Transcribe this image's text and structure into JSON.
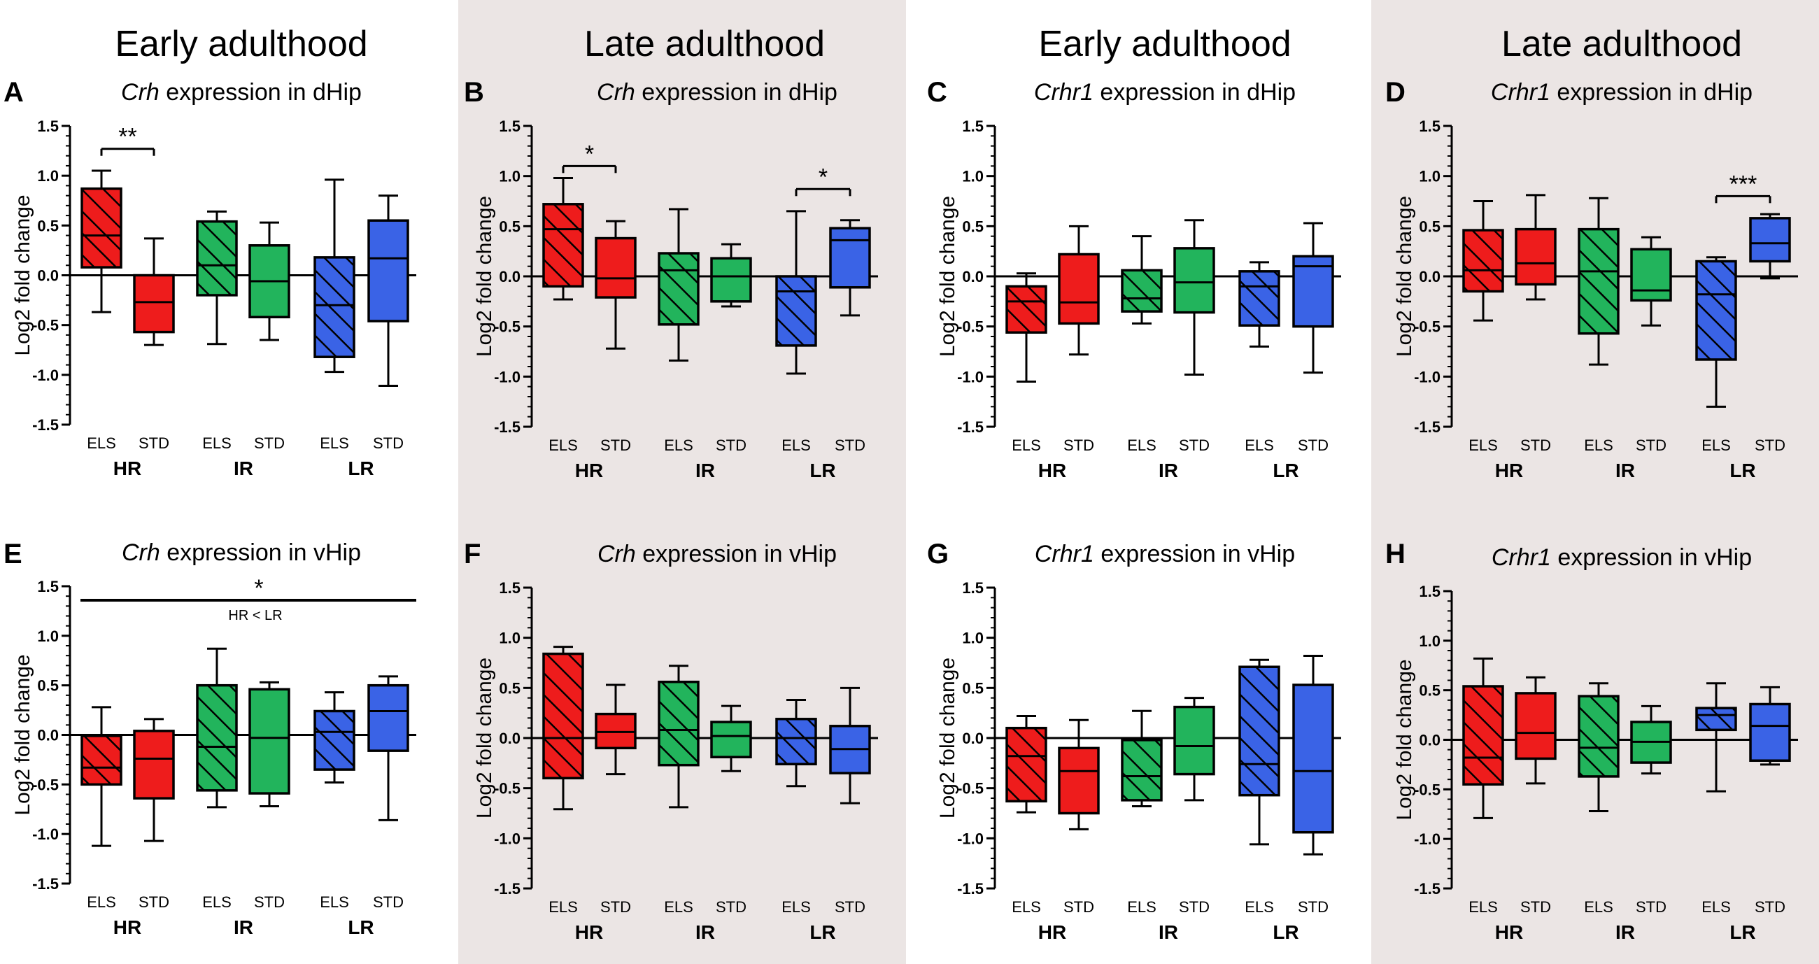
{
  "column_titles": [
    "Early adulthood",
    "Late adulthood",
    "Early adulthood",
    "Late adulthood"
  ],
  "colors": {
    "shade": "#ebe5e4",
    "HR": "#ee1c1c",
    "IR": "#22b45c",
    "LR": "#3a63e6",
    "ink": "#000000"
  },
  "chart_data": [
    {
      "type": "box",
      "panel": "A",
      "title_gene": "Crh",
      "title_rest": "expression in dHip",
      "ylabel": "Log2 fold change",
      "ylim": [
        -1.5,
        1.5
      ],
      "yticks": [
        "1.5",
        "1.0",
        "0.5",
        "0.0",
        "-0.5",
        "-1.0",
        "-1.5"
      ],
      "categories": [
        "ELS",
        "STD",
        "ELS",
        "STD",
        "ELS",
        "STD"
      ],
      "groups": [
        "HR",
        "IR",
        "LR"
      ],
      "boxes": [
        {
          "group": "HR",
          "cond": "ELS",
          "min": -0.37,
          "q1": 0.08,
          "median": 0.4,
          "q3": 0.87,
          "max": 1.05
        },
        {
          "group": "HR",
          "cond": "STD",
          "min": -0.7,
          "q1": -0.57,
          "median": -0.27,
          "q3": 0.0,
          "max": 0.37
        },
        {
          "group": "IR",
          "cond": "ELS",
          "min": -0.69,
          "q1": -0.2,
          "median": 0.1,
          "q3": 0.54,
          "max": 0.64
        },
        {
          "group": "IR",
          "cond": "STD",
          "min": -0.65,
          "q1": -0.42,
          "median": -0.06,
          "q3": 0.3,
          "max": 0.53
        },
        {
          "group": "LR",
          "cond": "ELS",
          "min": -0.97,
          "q1": -0.82,
          "median": -0.3,
          "q3": 0.18,
          "max": 0.96
        },
        {
          "group": "LR",
          "cond": "STD",
          "min": -1.11,
          "q1": -0.46,
          "median": 0.17,
          "q3": 0.55,
          "max": 0.8
        }
      ],
      "significance": [
        {
          "from": 0,
          "to": 1,
          "y": 1.27,
          "label": "**"
        }
      ]
    },
    {
      "type": "box",
      "panel": "B",
      "title_gene": "Crh",
      "title_rest": "expression in dHip",
      "ylabel": "Log2 fold change",
      "ylim": [
        -1.5,
        1.5
      ],
      "yticks": [
        "1.5",
        "1.0",
        "0.5",
        "0.0",
        "-0.5",
        "-1.0",
        "-1.5"
      ],
      "categories": [
        "ELS",
        "STD",
        "ELS",
        "STD",
        "ELS",
        "STD"
      ],
      "groups": [
        "HR",
        "IR",
        "LR"
      ],
      "boxes": [
        {
          "group": "HR",
          "cond": "ELS",
          "min": -0.23,
          "q1": -0.1,
          "median": 0.47,
          "q3": 0.72,
          "max": 0.98
        },
        {
          "group": "HR",
          "cond": "STD",
          "min": -0.72,
          "q1": -0.21,
          "median": -0.02,
          "q3": 0.38,
          "max": 0.55
        },
        {
          "group": "IR",
          "cond": "ELS",
          "min": -0.84,
          "q1": -0.48,
          "median": 0.06,
          "q3": 0.23,
          "max": 0.67
        },
        {
          "group": "IR",
          "cond": "STD",
          "min": -0.3,
          "q1": -0.25,
          "median": 0.0,
          "q3": 0.18,
          "max": 0.32
        },
        {
          "group": "LR",
          "cond": "ELS",
          "min": -0.97,
          "q1": -0.69,
          "median": -0.15,
          "q3": 0.0,
          "max": 0.65
        },
        {
          "group": "LR",
          "cond": "STD",
          "min": -0.39,
          "q1": -0.11,
          "median": 0.36,
          "q3": 0.48,
          "max": 0.56
        }
      ],
      "significance": [
        {
          "from": 0,
          "to": 1,
          "y": 1.1,
          "label": "*"
        },
        {
          "from": 4,
          "to": 5,
          "y": 0.87,
          "label": "*"
        }
      ]
    },
    {
      "type": "box",
      "panel": "C",
      "title_gene": "Crhr1",
      "title_rest": "expression in dHip",
      "ylabel": "Log2 fold change",
      "ylim": [
        -1.5,
        1.5
      ],
      "yticks": [
        "1.5",
        "1.0",
        "0.5",
        "0.0",
        "-0.5",
        "-1.0",
        "-1.5"
      ],
      "categories": [
        "ELS",
        "STD",
        "ELS",
        "STD",
        "ELS",
        "STD"
      ],
      "groups": [
        "HR",
        "IR",
        "LR"
      ],
      "boxes": [
        {
          "group": "HR",
          "cond": "ELS",
          "min": -1.05,
          "q1": -0.56,
          "median": -0.25,
          "q3": -0.1,
          "max": 0.03
        },
        {
          "group": "HR",
          "cond": "STD",
          "min": -0.78,
          "q1": -0.47,
          "median": -0.26,
          "q3": 0.22,
          "max": 0.5
        },
        {
          "group": "IR",
          "cond": "ELS",
          "min": -0.47,
          "q1": -0.35,
          "median": -0.22,
          "q3": 0.06,
          "max": 0.4
        },
        {
          "group": "IR",
          "cond": "STD",
          "min": -0.98,
          "q1": -0.36,
          "median": -0.06,
          "q3": 0.28,
          "max": 0.56
        },
        {
          "group": "LR",
          "cond": "ELS",
          "min": -0.7,
          "q1": -0.49,
          "median": -0.1,
          "q3": 0.05,
          "max": 0.14
        },
        {
          "group": "LR",
          "cond": "STD",
          "min": -0.96,
          "q1": -0.5,
          "median": 0.1,
          "q3": 0.2,
          "max": 0.53
        }
      ],
      "significance": []
    },
    {
      "type": "box",
      "panel": "D",
      "title_gene": "Crhr1",
      "title_rest": "expression in dHip",
      "ylabel": "Log2 fold change",
      "ylim": [
        -1.5,
        1.5
      ],
      "yticks": [
        "1.5",
        "1.0",
        "0.5",
        "0.0",
        "-0.5",
        "-1.0",
        "-1.5"
      ],
      "categories": [
        "ELS",
        "STD",
        "ELS",
        "STD",
        "ELS",
        "STD"
      ],
      "groups": [
        "HR",
        "IR",
        "LR"
      ],
      "boxes": [
        {
          "group": "HR",
          "cond": "ELS",
          "min": -0.44,
          "q1": -0.15,
          "median": 0.06,
          "q3": 0.46,
          "max": 0.75
        },
        {
          "group": "HR",
          "cond": "STD",
          "min": -0.23,
          "q1": -0.08,
          "median": 0.13,
          "q3": 0.47,
          "max": 0.81
        },
        {
          "group": "IR",
          "cond": "ELS",
          "min": -0.88,
          "q1": -0.57,
          "median": 0.05,
          "q3": 0.47,
          "max": 0.78
        },
        {
          "group": "IR",
          "cond": "STD",
          "min": -0.49,
          "q1": -0.24,
          "median": -0.14,
          "q3": 0.27,
          "max": 0.39
        },
        {
          "group": "LR",
          "cond": "ELS",
          "min": -1.3,
          "q1": -0.83,
          "median": -0.18,
          "q3": 0.15,
          "max": 0.19
        },
        {
          "group": "LR",
          "cond": "STD",
          "min": -0.02,
          "q1": 0.15,
          "median": 0.33,
          "q3": 0.58,
          "max": 0.62
        }
      ],
      "significance": [
        {
          "from": 4,
          "to": 5,
          "y": 0.8,
          "label": "***"
        }
      ]
    },
    {
      "type": "box",
      "panel": "E",
      "title_gene": "Crh",
      "title_rest": "expression in vHip",
      "ylabel": "Log2 fold change",
      "ylim": [
        -1.5,
        1.5
      ],
      "yticks": [
        "1.5",
        "1.0",
        "0.5",
        "0.0",
        "-0.5",
        "-1.0",
        "-1.5"
      ],
      "categories": [
        "ELS",
        "STD",
        "ELS",
        "STD",
        "ELS",
        "STD"
      ],
      "groups": [
        "HR",
        "IR",
        "LR"
      ],
      "boxes": [
        {
          "group": "HR",
          "cond": "ELS",
          "min": -1.12,
          "q1": -0.5,
          "median": -0.33,
          "q3": -0.01,
          "max": 0.28
        },
        {
          "group": "HR",
          "cond": "STD",
          "min": -1.07,
          "q1": -0.64,
          "median": -0.24,
          "q3": 0.04,
          "max": 0.16
        },
        {
          "group": "IR",
          "cond": "ELS",
          "min": -0.73,
          "q1": -0.56,
          "median": -0.12,
          "q3": 0.5,
          "max": 0.87
        },
        {
          "group": "IR",
          "cond": "STD",
          "min": -0.72,
          "q1": -0.59,
          "median": -0.03,
          "q3": 0.46,
          "max": 0.53
        },
        {
          "group": "LR",
          "cond": "ELS",
          "min": -0.48,
          "q1": -0.35,
          "median": 0.03,
          "q3": 0.24,
          "max": 0.43
        },
        {
          "group": "LR",
          "cond": "STD",
          "min": -0.86,
          "q1": -0.16,
          "median": 0.24,
          "q3": 0.5,
          "max": 0.59
        }
      ],
      "significance": [],
      "overall": {
        "label": "*",
        "note": "HR < LR"
      }
    },
    {
      "type": "box",
      "panel": "F",
      "title_gene": "Crh",
      "title_rest": "expression in vHip",
      "ylabel": "Log2 fold change",
      "ylim": [
        -1.5,
        1.5
      ],
      "yticks": [
        "1.5",
        "1.0",
        "0.5",
        "0.0",
        "-0.5",
        "-1.0",
        "-1.5"
      ],
      "categories": [
        "ELS",
        "STD",
        "ELS",
        "STD",
        "ELS",
        "STD"
      ],
      "groups": [
        "HR",
        "IR",
        "LR"
      ],
      "boxes": [
        {
          "group": "HR",
          "cond": "ELS",
          "min": -0.71,
          "q1": -0.4,
          "median": 0.0,
          "q3": 0.84,
          "max": 0.91
        },
        {
          "group": "HR",
          "cond": "STD",
          "min": -0.36,
          "q1": -0.1,
          "median": 0.06,
          "q3": 0.24,
          "max": 0.53
        },
        {
          "group": "IR",
          "cond": "ELS",
          "min": -0.69,
          "q1": -0.27,
          "median": 0.08,
          "q3": 0.56,
          "max": 0.72
        },
        {
          "group": "IR",
          "cond": "STD",
          "min": -0.33,
          "q1": -0.19,
          "median": 0.02,
          "q3": 0.16,
          "max": 0.32
        },
        {
          "group": "LR",
          "cond": "ELS",
          "min": -0.48,
          "q1": -0.26,
          "median": 0.0,
          "q3": 0.19,
          "max": 0.38
        },
        {
          "group": "LR",
          "cond": "STD",
          "min": -0.65,
          "q1": -0.35,
          "median": -0.11,
          "q3": 0.12,
          "max": 0.5
        }
      ],
      "significance": []
    },
    {
      "type": "box",
      "panel": "G",
      "title_gene": "Crhr1",
      "title_rest": "expression in vHip",
      "ylabel": "Log2 fold change",
      "ylim": [
        -1.5,
        1.5
      ],
      "yticks": [
        "1.5",
        "1.0",
        "0.5",
        "0.0",
        "-0.5",
        "-1.0",
        "-1.5"
      ],
      "categories": [
        "ELS",
        "STD",
        "ELS",
        "STD",
        "ELS",
        "STD"
      ],
      "groups": [
        "HR",
        "IR",
        "LR"
      ],
      "boxes": [
        {
          "group": "HR",
          "cond": "ELS",
          "min": -0.74,
          "q1": -0.63,
          "median": -0.18,
          "q3": 0.1,
          "max": 0.22
        },
        {
          "group": "HR",
          "cond": "STD",
          "min": -0.91,
          "q1": -0.75,
          "median": -0.33,
          "q3": -0.1,
          "max": 0.18
        },
        {
          "group": "IR",
          "cond": "ELS",
          "min": -0.68,
          "q1": -0.62,
          "median": -0.38,
          "q3": -0.02,
          "max": 0.27
        },
        {
          "group": "IR",
          "cond": "STD",
          "min": -0.62,
          "q1": -0.36,
          "median": -0.08,
          "q3": 0.31,
          "max": 0.4
        },
        {
          "group": "LR",
          "cond": "ELS",
          "min": -1.06,
          "q1": -0.57,
          "median": -0.26,
          "q3": 0.71,
          "max": 0.78
        },
        {
          "group": "LR",
          "cond": "STD",
          "min": -1.16,
          "q1": -0.94,
          "median": -0.33,
          "q3": 0.53,
          "max": 0.82
        }
      ],
      "significance": []
    },
    {
      "type": "box",
      "panel": "H",
      "title_gene": "Crhr1",
      "title_rest": "expression in vHip",
      "ylabel": "Log2 fold change",
      "ylim": [
        -1.5,
        1.5
      ],
      "yticks": [
        "1.5",
        "1.0",
        "0.5",
        "0.0",
        "-0.5",
        "-1.0",
        "-1.5"
      ],
      "categories": [
        "ELS",
        "STD",
        "ELS",
        "STD",
        "ELS",
        "STD"
      ],
      "groups": [
        "HR",
        "IR",
        "LR"
      ],
      "boxes": [
        {
          "group": "HR",
          "cond": "ELS",
          "min": -0.79,
          "q1": -0.45,
          "median": -0.18,
          "q3": 0.54,
          "max": 0.82
        },
        {
          "group": "HR",
          "cond": "STD",
          "min": -0.44,
          "q1": -0.19,
          "median": 0.07,
          "q3": 0.47,
          "max": 0.63
        },
        {
          "group": "IR",
          "cond": "ELS",
          "min": -0.72,
          "q1": -0.37,
          "median": -0.08,
          "q3": 0.44,
          "max": 0.57
        },
        {
          "group": "IR",
          "cond": "STD",
          "min": -0.34,
          "q1": -0.23,
          "median": -0.02,
          "q3": 0.18,
          "max": 0.34
        },
        {
          "group": "LR",
          "cond": "ELS",
          "min": -0.52,
          "q1": 0.1,
          "median": 0.25,
          "q3": 0.32,
          "max": 0.57
        },
        {
          "group": "LR",
          "cond": "STD",
          "min": -0.25,
          "q1": -0.21,
          "median": 0.14,
          "q3": 0.36,
          "max": 0.53
        }
      ],
      "significance": []
    }
  ]
}
